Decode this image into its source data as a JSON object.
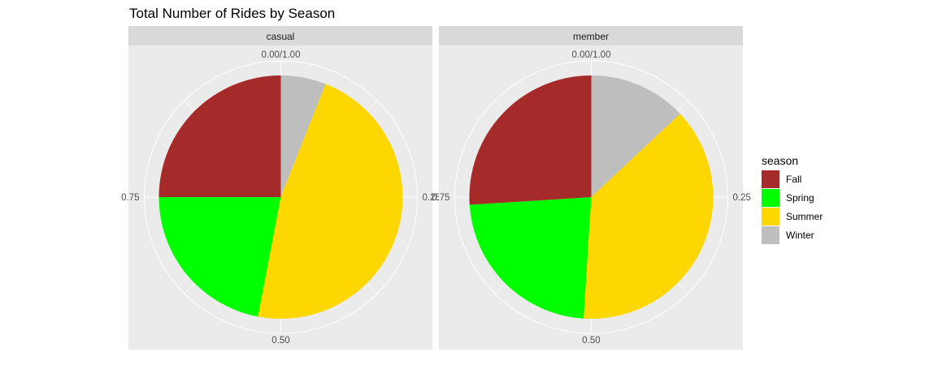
{
  "chart_data": {
    "type": "pie",
    "title": "Total Number of Rides by Season",
    "theta_ticks": [
      "0.00/1.00",
      "0.25",
      "0.50",
      "0.75"
    ],
    "categories": [
      "Winter",
      "Summer",
      "Spring",
      "Fall"
    ],
    "facets": [
      {
        "name": "casual",
        "values": [
          0.06,
          0.47,
          0.22,
          0.25
        ]
      },
      {
        "name": "member",
        "values": [
          0.13,
          0.38,
          0.23,
          0.26
        ]
      }
    ],
    "legend": {
      "title": "season",
      "position": "right",
      "items": [
        {
          "label": "Fall",
          "color": "#A52A2A"
        },
        {
          "label": "Spring",
          "color": "#00FF00"
        },
        {
          "label": "Summer",
          "color": "#FFD700"
        },
        {
          "label": "Winter",
          "color": "#BEBEBE"
        }
      ]
    },
    "colors": {
      "Fall": "#A52A2A",
      "Spring": "#00FF00",
      "Summer": "#FFD700",
      "Winter": "#BEBEBE",
      "panel": "#EBEBEB",
      "strip": "#D9D9D9",
      "grid": "#FFFFFF"
    }
  }
}
